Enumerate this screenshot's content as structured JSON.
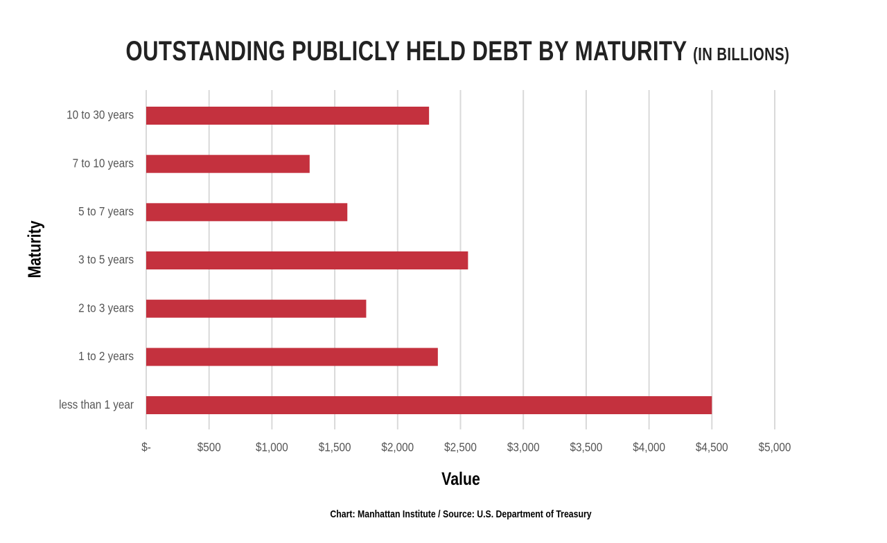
{
  "chart_data": {
    "type": "bar",
    "orientation": "horizontal",
    "title": "OUTSTANDING PUBLICLY HELD DEBT BY MATURITY",
    "subtitle": "(IN BILLIONS)",
    "xlabel": "Value",
    "ylabel": "Maturity",
    "categories": [
      "10 to 30 years",
      "7 to 10 years",
      "5 to 7 years",
      "3 to 5 years",
      "2 to 3 years",
      "1 to 2 years",
      "less than 1 year"
    ],
    "values": [
      2250,
      1300,
      1600,
      2560,
      1750,
      2320,
      4500
    ],
    "xlim": [
      0,
      5000
    ],
    "xticks": [
      0,
      500,
      1000,
      1500,
      2000,
      2500,
      3000,
      3500,
      4000,
      4500,
      5000
    ],
    "xtick_labels": [
      "$-",
      "$500",
      "$1,000",
      "$1,500",
      "$2,000",
      "$2,500",
      "$3,000",
      "$3,500",
      "$4,000",
      "$4,500",
      "$5,000"
    ],
    "grid": "vertical",
    "bar_color": "#c4313e",
    "grid_color": "#d9d9d9"
  },
  "source": "Chart: Manhattan Institute / Source: U.S. Department of Treasury"
}
